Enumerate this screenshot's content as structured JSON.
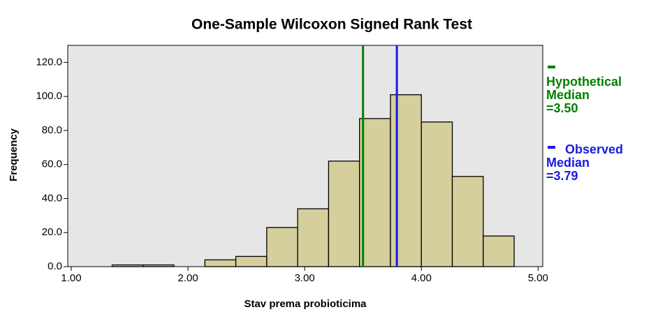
{
  "chart_data": {
    "type": "histogram",
    "title": "One-Sample Wilcoxon Signed Rank Test",
    "x_label": "Stav prema probioticima",
    "y_label": "Frequency",
    "bins": [
      1.35,
      1.615,
      1.88,
      2.145,
      2.41,
      2.675,
      2.94,
      3.205,
      3.47,
      3.735,
      4.0,
      4.265,
      4.53,
      4.795
    ],
    "values": [
      1,
      1,
      0,
      4,
      6,
      23,
      34,
      62,
      87,
      101,
      85,
      53,
      18
    ],
    "color": "#d4cf9c",
    "xlim": [
      0.97,
      5.04
    ],
    "ylim": [
      0,
      130
    ],
    "xticks": [
      {
        "value": 1,
        "label": "1.00"
      },
      {
        "value": 2,
        "label": "2.00"
      },
      {
        "value": 3,
        "label": "3.00"
      },
      {
        "value": 4,
        "label": "4.00"
      },
      {
        "value": 5,
        "label": "5.00"
      }
    ],
    "yticks": [
      {
        "value": 0,
        "label": "0.0"
      },
      {
        "value": 20,
        "label": "20.0"
      },
      {
        "value": 40,
        "label": "40.0"
      },
      {
        "value": 60,
        "label": "60.0"
      },
      {
        "value": 80,
        "label": "80.0"
      },
      {
        "value": 100,
        "label": "100.0"
      },
      {
        "value": 120,
        "label": "120.0"
      }
    ],
    "reference_lines": [
      {
        "name": "Hypothetical Median",
        "value": 3.5,
        "label": "=3.50",
        "color": "#008000"
      },
      {
        "name": "Observed Median",
        "value": 3.79,
        "label": "=3.79",
        "color": "#1a1ae0"
      }
    ]
  }
}
